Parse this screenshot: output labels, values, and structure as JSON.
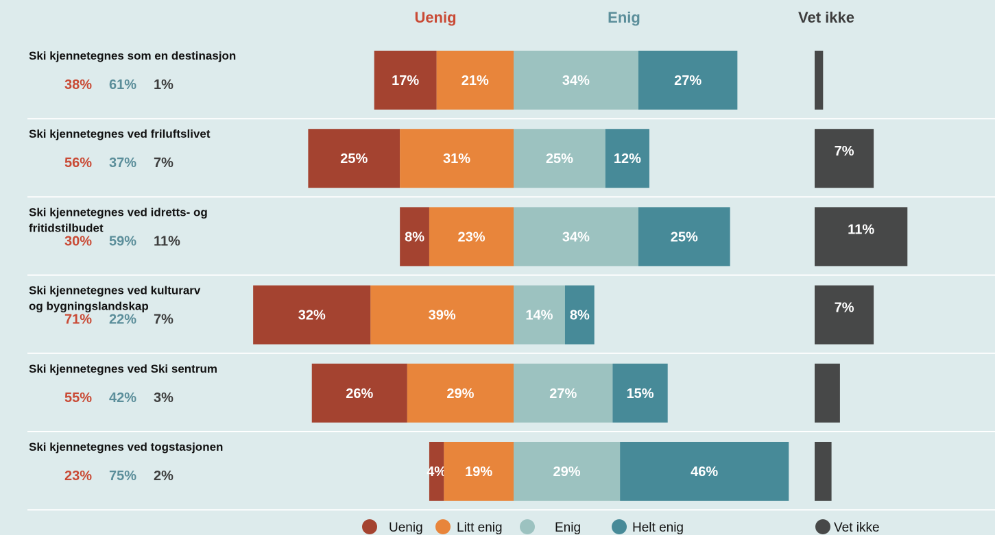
{
  "colors": {
    "background": "#ddebec",
    "uenig": "#a44330",
    "litt_enig": "#e8853b",
    "enig": "#9cc2c0",
    "helt_enig": "#478a98",
    "vet_ikke": "#474848",
    "uenig_text": "#c94a35",
    "enig_text": "#5b8e9a",
    "vet_ikke_text": "#3d3d3d",
    "separator": "#ffffff"
  },
  "headers": {
    "uenig": "Uenig",
    "enig": "Enig",
    "vet_ikke": "Vet ikke"
  },
  "legend": [
    {
      "label": "Uenig",
      "color_key": "uenig"
    },
    {
      "label": "Litt enig",
      "color_key": "litt_enig"
    },
    {
      "label": "Enig",
      "color_key": "enig"
    },
    {
      "label": "Helt enig",
      "color_key": "helt_enig"
    },
    {
      "label": "Vet ikke",
      "color_key": "vet_ikke"
    }
  ],
  "chart_data": {
    "type": "bar",
    "subtype": "diverging-stacked",
    "series": [
      {
        "name": "Uenig",
        "values": [
          17,
          25,
          8,
          32,
          26,
          4
        ]
      },
      {
        "name": "Litt enig",
        "values": [
          21,
          31,
          23,
          39,
          29,
          19
        ]
      },
      {
        "name": "Enig",
        "values": [
          34,
          25,
          34,
          14,
          27,
          29
        ]
      },
      {
        "name": "Helt enig",
        "values": [
          27,
          12,
          25,
          8,
          15,
          46
        ]
      },
      {
        "name": "Vet ikke",
        "values": [
          1,
          7,
          11,
          7,
          3,
          2
        ]
      }
    ],
    "rows": [
      {
        "label": [
          "Ski kjennetegnes som en destinasjon"
        ],
        "sum_uenig": "38%",
        "sum_enig": "61%",
        "sum_vet_ikke": "1%",
        "uenig": 17,
        "litt_enig": 21,
        "enig": 34,
        "helt_enig": 27,
        "vet_ikke": 1,
        "labels": [
          "17%",
          "21%",
          "34%",
          "27%",
          ""
        ]
      },
      {
        "label": [
          "Ski kjennetegnes ved friluftslivet"
        ],
        "sum_uenig": "56%",
        "sum_enig": "37%",
        "sum_vet_ikke": "7%",
        "uenig": 25,
        "litt_enig": 31,
        "enig": 25,
        "helt_enig": 12,
        "vet_ikke": 7,
        "labels": [
          "25%",
          "31%",
          "25%",
          "12%",
          "7%"
        ]
      },
      {
        "label": [
          "Ski kjennetegnes ved idretts- og",
          "fritidstilbudet"
        ],
        "sum_uenig": "30%",
        "sum_enig": "59%",
        "sum_vet_ikke": "11%",
        "uenig": 8,
        "litt_enig": 23,
        "enig": 34,
        "helt_enig": 25,
        "vet_ikke": 11,
        "labels": [
          "8%",
          "23%",
          "34%",
          "25%",
          "11%"
        ]
      },
      {
        "label": [
          "Ski kjennetegnes ved kulturarv",
          "og bygningslandskap"
        ],
        "sum_uenig": "71%",
        "sum_enig": "22%",
        "sum_vet_ikke": "7%",
        "uenig": 32,
        "litt_enig": 39,
        "enig": 14,
        "helt_enig": 8,
        "vet_ikke": 7,
        "labels": [
          "32%",
          "39%",
          "14%",
          "8%",
          "7%"
        ]
      },
      {
        "label": [
          "Ski kjennetegnes ved Ski sentrum"
        ],
        "sum_uenig": "55%",
        "sum_enig": "42%",
        "sum_vet_ikke": "3%",
        "uenig": 26,
        "litt_enig": 29,
        "enig": 27,
        "helt_enig": 15,
        "vet_ikke": 3,
        "labels": [
          "26%",
          "29%",
          "27%",
          "15%",
          ""
        ]
      },
      {
        "label": [
          "Ski kjennetegnes ved togstasjonen"
        ],
        "sum_uenig": "23%",
        "sum_enig": "75%",
        "sum_vet_ikke": "2%",
        "uenig": 4,
        "litt_enig": 19,
        "enig": 29,
        "helt_enig": 46,
        "vet_ikke": 2,
        "labels": [
          "4%",
          "19%",
          "29%",
          "46%",
          ""
        ]
      }
    ],
    "title": "",
    "xlabel": "",
    "ylabel": "",
    "grid": false,
    "legend_position": "bottom"
  }
}
